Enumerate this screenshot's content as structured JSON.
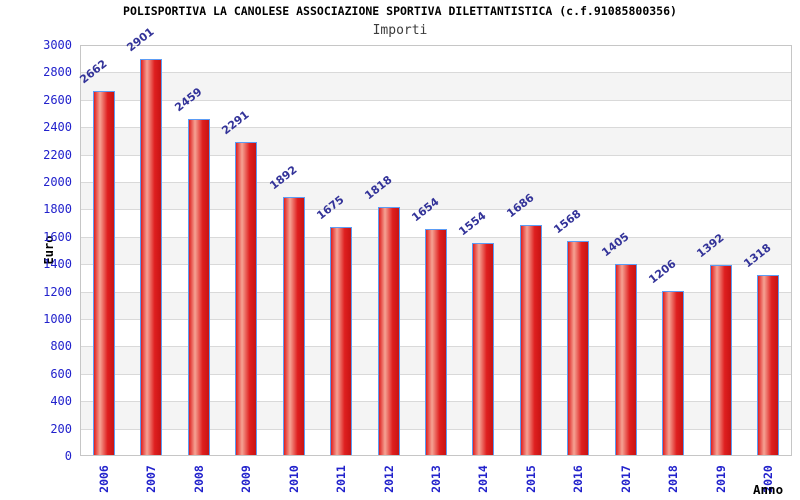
{
  "chart_data": {
    "type": "bar",
    "title": "POLISPORTIVA LA CANOLESE ASSOCIAZIONE SPORTIVA DILETTANTISTICA (c.f.91085800356)",
    "subtitle": "Importi",
    "xlabel": "Anno",
    "ylabel": "Euro",
    "categories": [
      "2006",
      "2007",
      "2008",
      "2009",
      "2010",
      "2011",
      "2012",
      "2013",
      "2014",
      "2015",
      "2016",
      "2017",
      "2018",
      "2019",
      "2020"
    ],
    "values": [
      2662,
      2901,
      2459,
      2291,
      1892,
      1675,
      1818,
      1654,
      1554,
      1686,
      1568,
      1405,
      1206,
      1392,
      1318
    ],
    "ylim": [
      0,
      3000
    ],
    "ytick_step": 200,
    "grid": true,
    "legend": false,
    "band_stripes": true,
    "colors": {
      "bar_main": "#df1f1f",
      "bar_highlight": "#f5a394",
      "bar_dark_edge": "#c81414",
      "bar_border": "#5b9cf5",
      "tick_text": "#2222cc",
      "value_text": "#333399",
      "axis_title_text": "#000000",
      "grid_line": "#d9d9d9",
      "band_fill": "#f4f4f4",
      "plot_border": "#c6c6c6",
      "background": "#ffffff"
    }
  }
}
